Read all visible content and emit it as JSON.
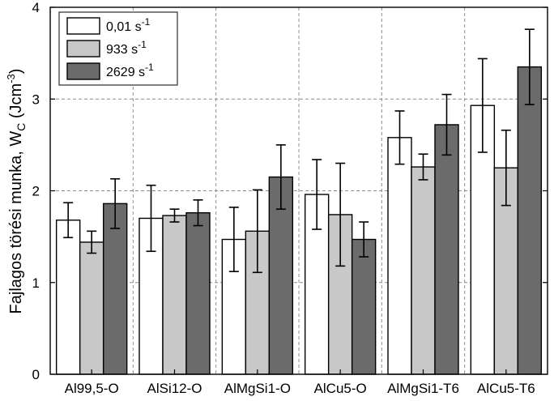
{
  "chart_data": {
    "type": "bar",
    "title": "",
    "xlabel": "",
    "ylabel": "Fajlagos törési munka, W",
    "ylabel_sub": "C",
    "ylabel_unit": " (Jcm",
    "ylabel_unit_sup": "-3",
    "ylabel_close": ")",
    "ylim": [
      0,
      4
    ],
    "yticks": [
      "0",
      "1",
      "2",
      "3",
      "4"
    ],
    "categories": [
      "Al99,5-O",
      "AlSi12-O",
      "AlMgSi1-O",
      "AlCu5-O",
      "AlMgSi1-T6",
      "AlCu5-T6"
    ],
    "series": [
      {
        "name": "0,01 s",
        "name_sup": "-1",
        "color": "#ffffff",
        "values": [
          1.68,
          1.7,
          1.47,
          1.96,
          2.58,
          2.93
        ],
        "errors": [
          0.19,
          0.36,
          0.35,
          0.38,
          0.29,
          0.51
        ]
      },
      {
        "name": "933 s",
        "name_sup": "-1",
        "color": "#c8c8c8",
        "values": [
          1.44,
          1.73,
          1.56,
          1.74,
          2.26,
          2.25
        ],
        "errors": [
          0.12,
          0.07,
          0.45,
          0.56,
          0.14,
          0.41
        ]
      },
      {
        "name": "2629 s",
        "name_sup": "-1",
        "color": "#6b6b6b",
        "values": [
          1.86,
          1.76,
          2.15,
          1.47,
          2.72,
          3.35
        ],
        "errors": [
          0.27,
          0.14,
          0.35,
          0.19,
          0.33,
          0.41
        ]
      }
    ],
    "grid": true,
    "legend": "top-left"
  }
}
